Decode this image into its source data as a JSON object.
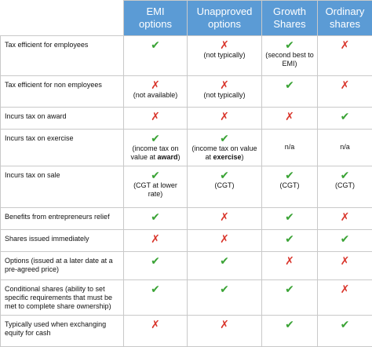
{
  "table": {
    "header_fill": "#5b9bd5",
    "columns": [
      [
        "EMI",
        "options"
      ],
      [
        "Unapproved",
        "options"
      ],
      [
        "Growth",
        "Shares"
      ],
      [
        "Ordinary",
        "shares"
      ]
    ],
    "rows": [
      {
        "label": "Tax efficient for employees",
        "cells": [
          {
            "mark": "✔",
            "color": "#3aa335"
          },
          {
            "mark": "✗",
            "color": "#d9352b",
            "note": [
              {
                "text": "(not typically)"
              }
            ]
          },
          {
            "mark": "✔",
            "color": "#3aa335",
            "note": [
              {
                "text": "(second best to EMI)"
              }
            ]
          },
          {
            "mark": "✗",
            "color": "#d9352b"
          }
        ]
      },
      {
        "label": "Tax efficient for non employees",
        "cells": [
          {
            "mark": "✗",
            "color": "#d9352b",
            "note": [
              {
                "text": "(not available)"
              }
            ]
          },
          {
            "mark": "✗",
            "color": "#d9352b",
            "note": [
              {
                "text": "(not typically)"
              }
            ]
          },
          {
            "mark": "✔",
            "color": "#3aa335"
          },
          {
            "mark": "✗",
            "color": "#d9352b"
          }
        ]
      },
      {
        "label": "Incurs tax on award",
        "cells": [
          {
            "mark": "✗",
            "color": "#d9352b"
          },
          {
            "mark": "✗",
            "color": "#d9352b"
          },
          {
            "mark": "✗",
            "color": "#d9352b"
          },
          {
            "mark": "✔",
            "color": "#3aa335"
          }
        ]
      },
      {
        "label": "Incurs tax on exercise",
        "cells": [
          {
            "mark": "✔",
            "color": "#3aa335",
            "note": [
              {
                "text": "(income tax on value at "
              },
              {
                "text": "award",
                "bold": true
              },
              {
                "text": ")"
              }
            ]
          },
          {
            "mark": "✔",
            "color": "#3aa335",
            "note": [
              {
                "text": "(income tax on value at "
              },
              {
                "text": "exercise",
                "bold": true
              },
              {
                "text": ")"
              }
            ]
          },
          {
            "note": [
              {
                "text": "n/a"
              }
            ]
          },
          {
            "note": [
              {
                "text": "n/a"
              }
            ]
          }
        ]
      },
      {
        "label": "Incurs tax on sale",
        "cells": [
          {
            "mark": "✔",
            "color": "#3aa335",
            "note": [
              {
                "text": "(CGT at lower rate)"
              }
            ]
          },
          {
            "mark": "✔",
            "color": "#3aa335",
            "note": [
              {
                "text": "(CGT)"
              }
            ]
          },
          {
            "mark": "✔",
            "color": "#3aa335",
            "note": [
              {
                "text": "(CGT)"
              }
            ]
          },
          {
            "mark": "✔",
            "color": "#3aa335",
            "note": [
              {
                "text": "(CGT)"
              }
            ]
          }
        ]
      },
      {
        "label": "Benefits from entrepreneurs relief",
        "cells": [
          {
            "mark": "✔",
            "color": "#3aa335"
          },
          {
            "mark": "✗",
            "color": "#d9352b"
          },
          {
            "mark": "✔",
            "color": "#3aa335"
          },
          {
            "mark": "✗",
            "color": "#d9352b"
          }
        ]
      },
      {
        "label": "Shares issued immediately",
        "cells": [
          {
            "mark": "✗",
            "color": "#d9352b"
          },
          {
            "mark": "✗",
            "color": "#d9352b"
          },
          {
            "mark": "✔",
            "color": "#3aa335"
          },
          {
            "mark": "✔",
            "color": "#3aa335"
          }
        ]
      },
      {
        "label": "Options (issued at a later date at a pre-agreed price)",
        "cells": [
          {
            "mark": "✔",
            "color": "#3aa335"
          },
          {
            "mark": "✔",
            "color": "#3aa335"
          },
          {
            "mark": "✗",
            "color": "#d9352b"
          },
          {
            "mark": "✗",
            "color": "#d9352b"
          }
        ]
      },
      {
        "label": "Conditional shares (ability to set specific requirements that must be met to complete share ownership)",
        "cells": [
          {
            "mark": "✔",
            "color": "#3aa335"
          },
          {
            "mark": "✔",
            "color": "#3aa335"
          },
          {
            "mark": "✔",
            "color": "#3aa335"
          },
          {
            "mark": "✗",
            "color": "#d9352b"
          }
        ]
      },
      {
        "label": "Typically used when exchanging equity for cash",
        "cells": [
          {
            "mark": "✗",
            "color": "#d9352b"
          },
          {
            "mark": "✗",
            "color": "#d9352b"
          },
          {
            "mark": "✔",
            "color": "#3aa335"
          },
          {
            "mark": "✔",
            "color": "#3aa335"
          }
        ]
      }
    ]
  }
}
